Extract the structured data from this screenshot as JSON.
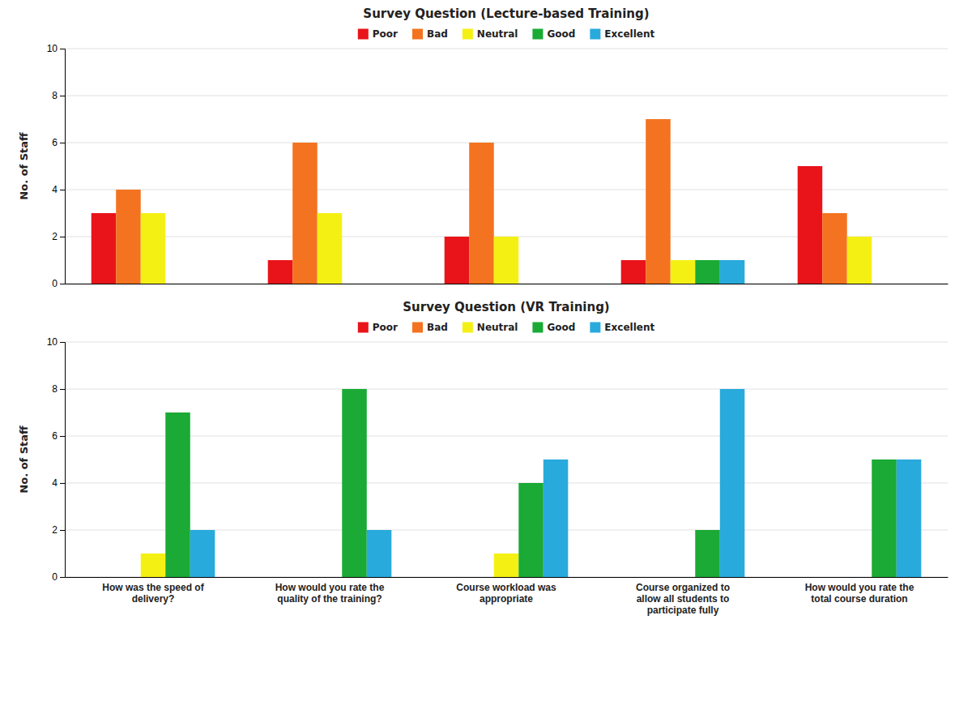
{
  "chart_data": [
    {
      "type": "bar",
      "title": "Survey Question (Lecture-based Training)",
      "categories": [
        null,
        null,
        null,
        null,
        null
      ],
      "series": [
        {
          "name": "Poor",
          "color": "#e8141a",
          "values": [
            3,
            1,
            2,
            1,
            5
          ]
        },
        {
          "name": "Bad",
          "color": "#f47320",
          "values": [
            4,
            6,
            6,
            7,
            3
          ]
        },
        {
          "name": "Neutral",
          "color": "#f5f014",
          "values": [
            3,
            3,
            2,
            1,
            2
          ]
        },
        {
          "name": "Good",
          "color": "#1aaa35",
          "values": [
            0,
            0,
            0,
            1,
            0
          ]
        },
        {
          "name": "Excellent",
          "color": "#29aadd",
          "values": [
            0,
            0,
            0,
            1,
            0
          ]
        }
      ],
      "y_label": "No. of Staff",
      "ylim": [
        0,
        10
      ],
      "yticks": [
        0,
        2,
        4,
        6,
        8,
        10
      ],
      "grid": true,
      "legend": "top"
    },
    {
      "type": "bar",
      "title": "Survey Question (VR Training)",
      "categories": [
        "How was the speed of\ndelivery?",
        "How would you rate the\nquality of the training?",
        "Course workload was\nappropriate",
        "Course organized to\nallow all students to\nparticipate fully",
        "How would you rate the\ntotal course duration"
      ],
      "series": [
        {
          "name": "Poor",
          "color": "#e8141a",
          "values": [
            0,
            0,
            0,
            0,
            0
          ]
        },
        {
          "name": "Bad",
          "color": "#f47320",
          "values": [
            0,
            0,
            0,
            0,
            0
          ]
        },
        {
          "name": "Neutral",
          "color": "#f5f014",
          "values": [
            1,
            0,
            1,
            0,
            0
          ]
        },
        {
          "name": "Good",
          "color": "#1aaa35",
          "values": [
            7,
            8,
            4,
            2,
            5
          ]
        },
        {
          "name": "Excellent",
          "color": "#29aadd",
          "values": [
            2,
            2,
            5,
            8,
            5
          ]
        }
      ],
      "y_label": "No. of Staff",
      "ylim": [
        0,
        10
      ],
      "yticks": [
        0,
        2,
        4,
        6,
        8,
        10
      ],
      "grid": true,
      "legend": "top"
    }
  ]
}
